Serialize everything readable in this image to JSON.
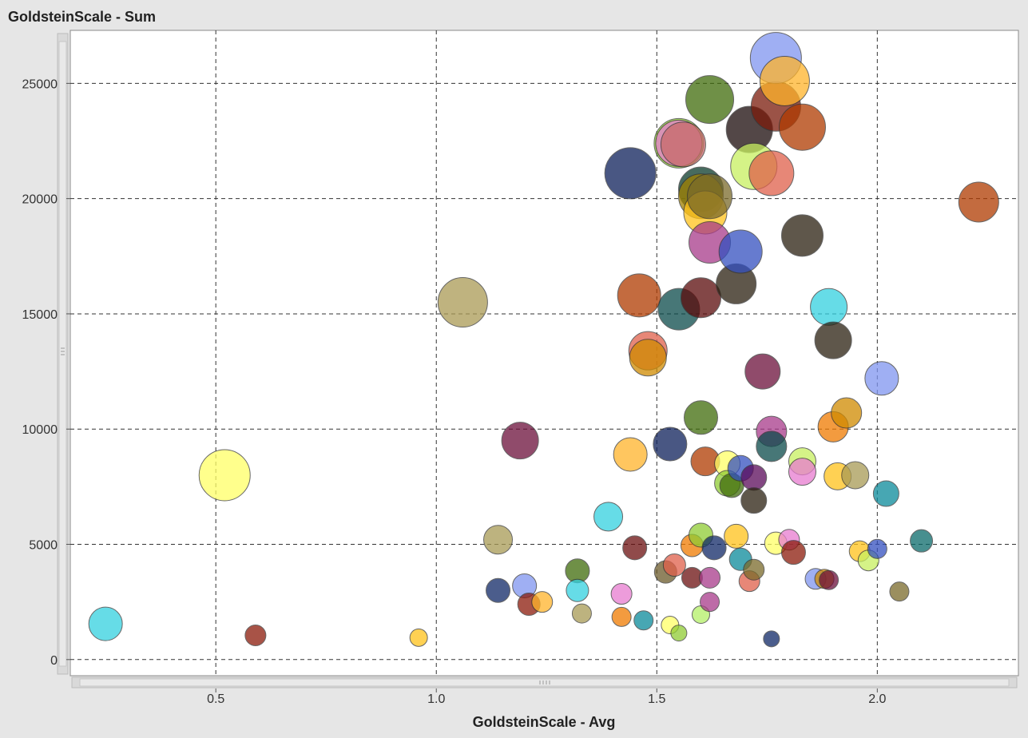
{
  "chart_data": {
    "type": "scatter",
    "title": "GoldsteinScale - Sum",
    "xlabel": "GoldsteinScale - Avg",
    "ylabel": "",
    "xlim": [
      0.17,
      2.32
    ],
    "ylim": [
      -700,
      27300
    ],
    "x_ticks": [
      0.5,
      1.0,
      1.5,
      2.0
    ],
    "x_tick_labels": [
      "0.5",
      "1.0",
      "1.5",
      "2.0"
    ],
    "y_ticks": [
      0,
      5000,
      10000,
      15000,
      20000,
      25000
    ],
    "y_tick_labels": [
      "0",
      "5000",
      "10000",
      "15000",
      "20000",
      "25000"
    ],
    "grid": true,
    "points": [
      {
        "x": 0.25,
        "y": 1550,
        "r": 21,
        "color": "#33d1e0"
      },
      {
        "x": 0.52,
        "y": 8000,
        "r": 32,
        "color": "#ffff66"
      },
      {
        "x": 0.59,
        "y": 1050,
        "r": 13,
        "color": "#8b1a0a"
      },
      {
        "x": 0.96,
        "y": 950,
        "r": 11,
        "color": "#ffc21a"
      },
      {
        "x": 1.06,
        "y": 15500,
        "r": 31,
        "color": "#aa9a55"
      },
      {
        "x": 1.14,
        "y": 5200,
        "r": 18,
        "color": "#a89a55"
      },
      {
        "x": 1.14,
        "y": 3000,
        "r": 15,
        "color": "#102866"
      },
      {
        "x": 1.19,
        "y": 9500,
        "r": 23,
        "color": "#6b0f3a"
      },
      {
        "x": 1.2,
        "y": 3200,
        "r": 15,
        "color": "#7f95ef"
      },
      {
        "x": 1.21,
        "y": 2400,
        "r": 14,
        "color": "#8b1a0a"
      },
      {
        "x": 1.24,
        "y": 2500,
        "r": 13,
        "color": "#ffb32a"
      },
      {
        "x": 1.32,
        "y": 3850,
        "r": 15,
        "color": "#3f6b0a"
      },
      {
        "x": 1.32,
        "y": 3000,
        "r": 14,
        "color": "#33d1e0"
      },
      {
        "x": 1.33,
        "y": 2000,
        "r": 12,
        "color": "#a89a55"
      },
      {
        "x": 1.39,
        "y": 6200,
        "r": 18,
        "color": "#33d1e0"
      },
      {
        "x": 1.42,
        "y": 2850,
        "r": 13,
        "color": "#e87cd0"
      },
      {
        "x": 1.42,
        "y": 1850,
        "r": 12,
        "color": "#ef7a00"
      },
      {
        "x": 1.44,
        "y": 8900,
        "r": 21,
        "color": "#ffb32a"
      },
      {
        "x": 1.44,
        "y": 21100,
        "r": 32,
        "color": "#0d1f5a"
      },
      {
        "x": 1.45,
        "y": 4850,
        "r": 15,
        "color": "#6b0f0f"
      },
      {
        "x": 1.46,
        "y": 15800,
        "r": 27,
        "color": "#b03a00"
      },
      {
        "x": 1.47,
        "y": 1700,
        "r": 12,
        "color": "#0a8a9a"
      },
      {
        "x": 1.48,
        "y": 13400,
        "r": 24,
        "color": "#e0604a"
      },
      {
        "x": 1.48,
        "y": 13100,
        "r": 23,
        "color": "#d08a00"
      },
      {
        "x": 1.52,
        "y": 3800,
        "r": 14,
        "color": "#6b5a2a"
      },
      {
        "x": 1.53,
        "y": 9350,
        "r": 21,
        "color": "#0d1f5a"
      },
      {
        "x": 1.53,
        "y": 1500,
        "r": 11,
        "color": "#ffff66"
      },
      {
        "x": 1.54,
        "y": 4100,
        "r": 14,
        "color": "#e0604a"
      },
      {
        "x": 1.55,
        "y": 1150,
        "r": 10,
        "color": "#8fcc33"
      },
      {
        "x": 1.55,
        "y": 22400,
        "r": 31,
        "color": "#8fcc33"
      },
      {
        "x": 1.55,
        "y": 22400,
        "r": 29,
        "color": "#e87cd0"
      },
      {
        "x": 1.55,
        "y": 15200,
        "r": 26,
        "color": "#0a4a4a"
      },
      {
        "x": 1.56,
        "y": 22350,
        "r": 28,
        "color": "#c76a6a"
      },
      {
        "x": 1.58,
        "y": 4950,
        "r": 14,
        "color": "#ef7a00"
      },
      {
        "x": 1.58,
        "y": 3550,
        "r": 13,
        "color": "#6b0f0f"
      },
      {
        "x": 1.6,
        "y": 20400,
        "r": 28,
        "color": "#0a3a2a"
      },
      {
        "x": 1.6,
        "y": 20100,
        "r": 28,
        "color": "#a08000"
      },
      {
        "x": 1.6,
        "y": 15700,
        "r": 25,
        "color": "#5a0a0a"
      },
      {
        "x": 1.6,
        "y": 10500,
        "r": 21,
        "color": "#3f6b0a"
      },
      {
        "x": 1.6,
        "y": 5400,
        "r": 15,
        "color": "#8fcc33"
      },
      {
        "x": 1.6,
        "y": 1950,
        "r": 11,
        "color": "#b3f066"
      },
      {
        "x": 1.61,
        "y": 8600,
        "r": 18,
        "color": "#b03a00"
      },
      {
        "x": 1.61,
        "y": 19400,
        "r": 27,
        "color": "#ffc21a"
      },
      {
        "x": 1.62,
        "y": 24300,
        "r": 30,
        "color": "#3f6b0a"
      },
      {
        "x": 1.62,
        "y": 20100,
        "r": 28,
        "color": "#7a6a2a"
      },
      {
        "x": 1.62,
        "y": 18100,
        "r": 26,
        "color": "#a83a8a"
      },
      {
        "x": 1.62,
        "y": 3550,
        "r": 13,
        "color": "#a83a8a"
      },
      {
        "x": 1.62,
        "y": 2500,
        "r": 12,
        "color": "#a83a8a"
      },
      {
        "x": 1.63,
        "y": 4850,
        "r": 15,
        "color": "#102866"
      },
      {
        "x": 1.66,
        "y": 8500,
        "r": 16,
        "color": "#ffff66"
      },
      {
        "x": 1.66,
        "y": 7650,
        "r": 16,
        "color": "#8fcc33"
      },
      {
        "x": 1.67,
        "y": 7550,
        "r": 15,
        "color": "#3f6b0a"
      },
      {
        "x": 1.68,
        "y": 5350,
        "r": 15,
        "color": "#ffc21a"
      },
      {
        "x": 1.68,
        "y": 16300,
        "r": 25,
        "color": "#2a2010"
      },
      {
        "x": 1.69,
        "y": 17700,
        "r": 27,
        "color": "#3350c0"
      },
      {
        "x": 1.69,
        "y": 8300,
        "r": 16,
        "color": "#3350c0"
      },
      {
        "x": 1.69,
        "y": 4350,
        "r": 14,
        "color": "#0a8a9a"
      },
      {
        "x": 1.71,
        "y": 3400,
        "r": 13,
        "color": "#e0604a"
      },
      {
        "x": 1.71,
        "y": 23000,
        "r": 29,
        "color": "#1a0a0a"
      },
      {
        "x": 1.72,
        "y": 21400,
        "r": 29,
        "color": "#c8f060"
      },
      {
        "x": 1.72,
        "y": 7900,
        "r": 16,
        "color": "#5a0a5a"
      },
      {
        "x": 1.72,
        "y": 6900,
        "r": 16,
        "color": "#2a2010"
      },
      {
        "x": 1.72,
        "y": 3900,
        "r": 13,
        "color": "#7a6a2a"
      },
      {
        "x": 1.74,
        "y": 12500,
        "r": 22,
        "color": "#6b0f3a"
      },
      {
        "x": 1.76,
        "y": 9900,
        "r": 19,
        "color": "#a83a8a"
      },
      {
        "x": 1.76,
        "y": 9250,
        "r": 19,
        "color": "#0a4a4a"
      },
      {
        "x": 1.76,
        "y": 21100,
        "r": 28,
        "color": "#e0604a"
      },
      {
        "x": 1.76,
        "y": 900,
        "r": 10,
        "color": "#102866"
      },
      {
        "x": 1.77,
        "y": 24000,
        "r": 31,
        "color": "#7a1a0a"
      },
      {
        "x": 1.77,
        "y": 26100,
        "r": 32,
        "color": "#7f95ef"
      },
      {
        "x": 1.77,
        "y": 5050,
        "r": 14,
        "color": "#ffff66"
      },
      {
        "x": 1.79,
        "y": 25100,
        "r": 31,
        "color": "#ffb32a"
      },
      {
        "x": 1.8,
        "y": 5200,
        "r": 13,
        "color": "#e87cd0"
      },
      {
        "x": 1.81,
        "y": 4650,
        "r": 15,
        "color": "#8b1a0a"
      },
      {
        "x": 1.83,
        "y": 8600,
        "r": 17,
        "color": "#c8f060"
      },
      {
        "x": 1.83,
        "y": 8150,
        "r": 17,
        "color": "#e87cd0"
      },
      {
        "x": 1.83,
        "y": 23100,
        "r": 29,
        "color": "#b03a00"
      },
      {
        "x": 1.83,
        "y": 18400,
        "r": 26,
        "color": "#2a2010"
      },
      {
        "x": 1.86,
        "y": 3500,
        "r": 13,
        "color": "#7f95ef"
      },
      {
        "x": 1.88,
        "y": 3500,
        "r": 12,
        "color": "#d08a00"
      },
      {
        "x": 1.89,
        "y": 3450,
        "r": 12,
        "color": "#6b0f3a"
      },
      {
        "x": 1.89,
        "y": 15300,
        "r": 23,
        "color": "#33d1e0"
      },
      {
        "x": 1.9,
        "y": 13850,
        "r": 23,
        "color": "#2a2010"
      },
      {
        "x": 1.9,
        "y": 10100,
        "r": 19,
        "color": "#ef7a00"
      },
      {
        "x": 1.91,
        "y": 7950,
        "r": 17,
        "color": "#ffc21a"
      },
      {
        "x": 1.93,
        "y": 10700,
        "r": 19,
        "color": "#d08a00"
      },
      {
        "x": 1.95,
        "y": 8000,
        "r": 17,
        "color": "#a89a55"
      },
      {
        "x": 1.96,
        "y": 4700,
        "r": 13,
        "color": "#ffc21a"
      },
      {
        "x": 1.98,
        "y": 4300,
        "r": 13,
        "color": "#c8f060"
      },
      {
        "x": 2.0,
        "y": 4800,
        "r": 12,
        "color": "#3350c0"
      },
      {
        "x": 2.01,
        "y": 12200,
        "r": 21,
        "color": "#7f95ef"
      },
      {
        "x": 2.02,
        "y": 7200,
        "r": 16,
        "color": "#0a8a9a"
      },
      {
        "x": 2.05,
        "y": 2950,
        "r": 12,
        "color": "#7a6a2a"
      },
      {
        "x": 2.1,
        "y": 5150,
        "r": 14,
        "color": "#0a6a6a"
      },
      {
        "x": 2.23,
        "y": 19850,
        "r": 25,
        "color": "#b03a00"
      }
    ]
  }
}
